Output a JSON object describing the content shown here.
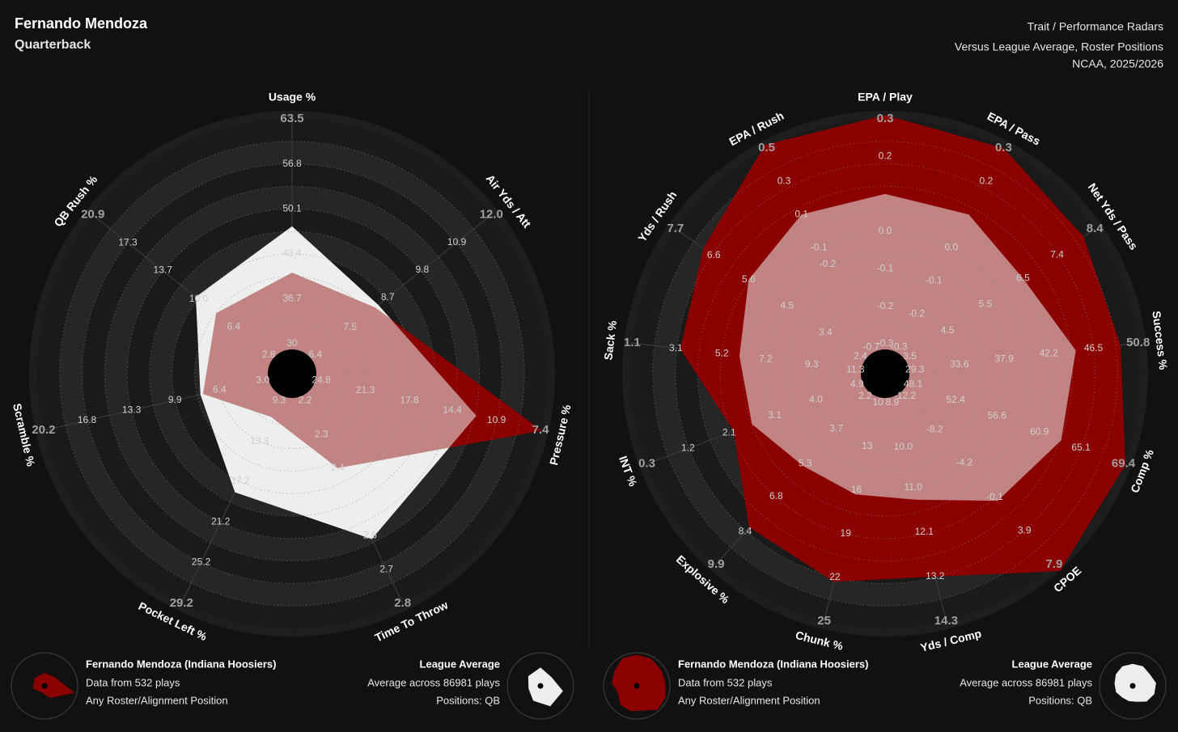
{
  "header": {
    "title": "Fernando Mendoza",
    "subtitle": "Quarterback",
    "right_lines": [
      "Trait / Performance Radars",
      "Versus League Average, Roster Positions",
      "NCAA, 2025/2026"
    ]
  },
  "chart_data": [
    {
      "type": "radar",
      "axes": [
        {
          "name": "Usage %",
          "ticks": [
            30,
            36.7,
            43.4,
            50.1,
            56.8,
            63.5
          ]
        },
        {
          "name": "Air Yds / Att",
          "ticks": [
            6.4,
            7.5,
            8.7,
            9.8,
            10.9,
            {
              "value": 12,
              "label": "12.0"
            }
          ]
        },
        {
          "name": "Pressure %",
          "ticks": [
            24.8,
            21.3,
            17.8,
            14.4,
            10.9,
            7.4
          ]
        },
        {
          "name": "Time To Throw",
          "ticks": [
            2.2,
            2.3,
            2.4,
            2.6,
            2.7,
            2.8
          ]
        },
        {
          "name": "Pocket Left %",
          "ticks": [
            9.3,
            13.3,
            17.2,
            21.2,
            25.2,
            29.2
          ]
        },
        {
          "name": "Scramble %",
          "ticks": [
            {
              "value": 3,
              "label": "3.0"
            },
            6.4,
            9.9,
            13.3,
            16.8,
            20.2
          ]
        },
        {
          "name": "QB Rush %",
          "ticks": [
            2.8,
            6.4,
            {
              "value": 10,
              "label": "10.0"
            },
            13.7,
            17.3,
            20.9
          ]
        }
      ],
      "series": [
        {
          "name": "Fernando Mendoza (Indiana Hoosiers)",
          "color": "#8b0000",
          "notes": [
            "Data from 532 plays",
            "Any Roster/Alignment Position"
          ],
          "values": [
            40.6,
            8.3,
            7.3,
            2.4,
            10.9,
            7.7,
            8.2
          ]
        },
        {
          "name": "League Average",
          "color": "#eeeeee",
          "notes": [
            "Average across 86981 plays",
            "Positions: QB"
          ],
          "values": [
            47.5,
            8.4,
            12.5,
            2.61,
            18.3,
            7.9,
            10.3
          ]
        }
      ]
    },
    {
      "type": "radar",
      "axes": [
        {
          "name": "EPA / Play",
          "ticks": [
            -0.3,
            -0.2,
            -0.1,
            {
              "value": 0,
              "label": "0.0"
            },
            0.2,
            0.3
          ]
        },
        {
          "name": "EPA / Pass",
          "ticks": [
            -0.3,
            -0.2,
            -0.1,
            {
              "value": 0,
              "label": "0.0"
            },
            0.2,
            0.3
          ]
        },
        {
          "name": "Net Yds / Pass",
          "ticks": [
            3.5,
            4.5,
            5.5,
            6.5,
            7.4,
            8.4
          ]
        },
        {
          "name": "Success %",
          "ticks": [
            29.3,
            33.6,
            37.9,
            42.2,
            46.5,
            50.8
          ]
        },
        {
          "name": "Comp %",
          "ticks": [
            48.1,
            52.4,
            56.6,
            60.9,
            65.1,
            69.4
          ]
        },
        {
          "name": "CPOE",
          "ticks": [
            -12.2,
            -8.2,
            -4.2,
            -0.1,
            3.9,
            7.9
          ]
        },
        {
          "name": "Yds / Comp",
          "ticks": [
            8.9,
            {
              "value": 10,
              "label": "10.0"
            },
            {
              "value": 11,
              "label": "11.0"
            },
            12.1,
            13.2,
            14.3
          ]
        },
        {
          "name": "Chunk %",
          "ticks": [
            10,
            13,
            16,
            19,
            22,
            25
          ]
        },
        {
          "name": "Explosive %",
          "ticks": [
            2.2,
            3.7,
            5.3,
            6.8,
            8.4,
            9.9
          ]
        },
        {
          "name": "INT %",
          "ticks": [
            4.9,
            {
              "value": 4,
              "label": "4.0"
            },
            3.1,
            2.1,
            1.2,
            0.3
          ]
        },
        {
          "name": "Sack %",
          "ticks": [
            11.3,
            9.3,
            7.2,
            5.2,
            3.1,
            1.1
          ]
        },
        {
          "name": "Yds / Rush",
          "ticks": [
            2.4,
            3.4,
            4.5,
            5.6,
            6.6,
            7.7
          ]
        },
        {
          "name": "EPA / Rush",
          "ticks": [
            -0.7,
            -0.2,
            -0.1,
            0.1,
            0.3,
            0.5
          ]
        }
      ],
      "series": [
        {
          "name": "Fernando Mendoza (Indiana Hoosiers)",
          "color": "#8b0000",
          "notes": [
            "Data from 532 plays",
            "Any Roster/Alignment Position"
          ],
          "values": [
            0.31,
            0.3,
            8.1,
            49.1,
            69.6,
            8.7,
            13.2,
            22.3,
            8.2,
            2.2,
            3.3,
            6.9,
            0.52
          ]
        },
        {
          "name": "League Average",
          "color": "#eeeeee",
          "notes": [
            "Average across 86981 plays",
            "Positions: QB"
          ],
          "values": [
            0.1,
            0.1,
            6.5,
            44.8,
            63.1,
            0.3,
            11.3,
            16.3,
            5.4,
            2.6,
            6.0,
            5.6,
            0.1
          ]
        }
      ]
    }
  ]
}
